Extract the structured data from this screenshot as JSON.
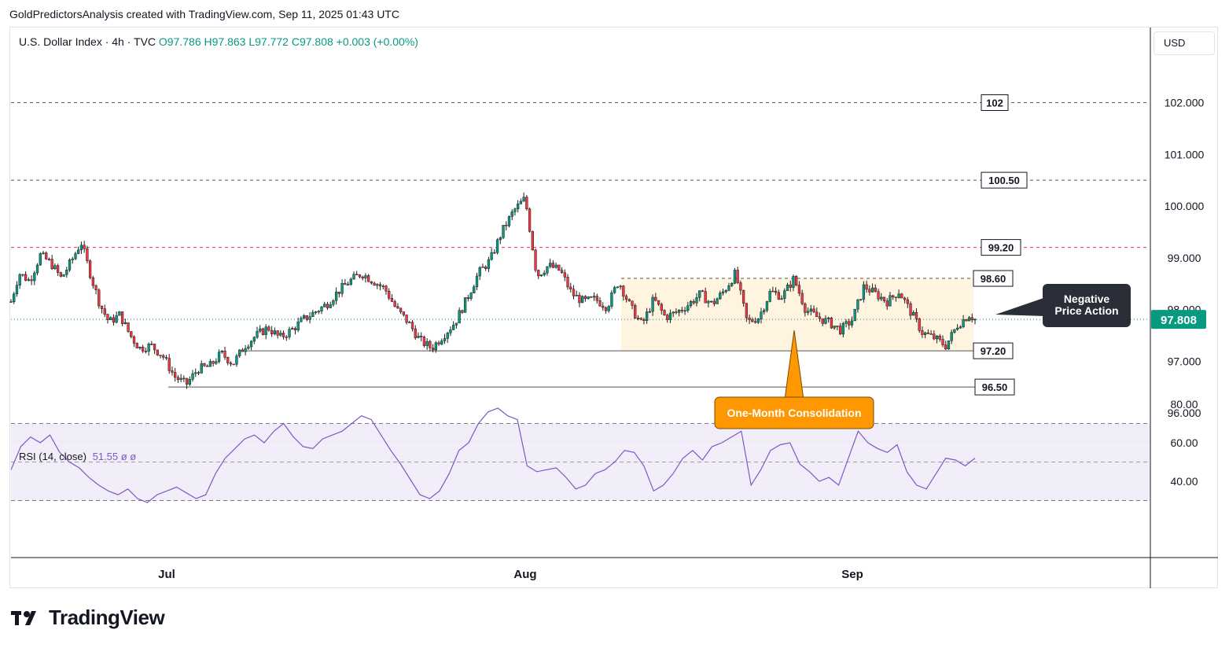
{
  "header": {
    "banner": "GoldPredictorsAnalysis created with TradingView.com, Sep 11, 2025 01:43 UTC",
    "symbol": "U.S. Dollar Index · 4h · TVC",
    "ohlc": "O97.786  H97.863  L97.772  C97.808  +0.003 (+0.00%)"
  },
  "currency_label": "USD",
  "rsi": {
    "label": "RSI (14, close)",
    "value_text": "51.55  ø  ø"
  },
  "footer": {
    "brand": "TradingView"
  },
  "colors": {
    "up": "#089981",
    "down": "#f23645",
    "rsi": "#7e57c2",
    "highlight": "#ff9800",
    "dark_label": "#2a2e39"
  },
  "chart_data": [
    {
      "type": "candlestick",
      "title": "U.S. Dollar Index",
      "timeframe": "4h",
      "x_tick_labels": [
        "Jul",
        "Aug",
        "Sep"
      ],
      "y_tick_labels": [
        "96.000",
        "97.000",
        "98.000",
        "99.000",
        "100.000",
        "101.000",
        "102.000"
      ],
      "ylim": [
        95.45,
        103.45
      ],
      "last_price": 97.808,
      "last_price_label": "97.808",
      "horizontal_levels": [
        {
          "value": 102.0,
          "label": "102",
          "style": "dashed",
          "color": "#555555"
        },
        {
          "value": 100.5,
          "label": "100.50",
          "style": "dashed",
          "color": "#555555"
        },
        {
          "value": 99.2,
          "label": "99.20",
          "style": "dashed",
          "color": "#f23645"
        },
        {
          "value": 98.6,
          "label": "98.60",
          "style": "dashed",
          "color": "#555555"
        },
        {
          "value": 97.2,
          "label": "97.20",
          "style": "solid",
          "color": "#555555"
        },
        {
          "value": 96.5,
          "label": "96.50",
          "style": "solid",
          "color": "#555555"
        }
      ],
      "consolidation_zone": {
        "top": 98.6,
        "bottom": 97.2,
        "label": "One-Month Consolidation"
      },
      "annotation": {
        "text_line1": "Negative",
        "text_line2": "Price Action"
      },
      "close_path": [
        {
          "x": 0.0,
          "y": 98.15
        },
        {
          "x": 0.7,
          "y": 98.7
        },
        {
          "x": 1.6,
          "y": 98.55
        },
        {
          "x": 2.5,
          "y": 99.05
        },
        {
          "x": 3.4,
          "y": 98.9
        },
        {
          "x": 4.3,
          "y": 98.6
        },
        {
          "x": 5.2,
          "y": 98.95
        },
        {
          "x": 6.0,
          "y": 99.3
        },
        {
          "x": 6.9,
          "y": 98.6
        },
        {
          "x": 7.6,
          "y": 98.1
        },
        {
          "x": 8.4,
          "y": 97.75
        },
        {
          "x": 9.3,
          "y": 97.9
        },
        {
          "x": 10.2,
          "y": 97.5
        },
        {
          "x": 11.0,
          "y": 97.25
        },
        {
          "x": 12.0,
          "y": 97.3
        },
        {
          "x": 13.0,
          "y": 97.1
        },
        {
          "x": 14.0,
          "y": 96.7
        },
        {
          "x": 15.0,
          "y": 96.55
        },
        {
          "x": 16.0,
          "y": 96.85
        },
        {
          "x": 17.0,
          "y": 96.9
        },
        {
          "x": 18.0,
          "y": 97.15
        },
        {
          "x": 19.0,
          "y": 96.95
        },
        {
          "x": 20.0,
          "y": 97.3
        },
        {
          "x": 21.0,
          "y": 97.5
        },
        {
          "x": 22.0,
          "y": 97.65
        },
        {
          "x": 23.0,
          "y": 97.45
        },
        {
          "x": 24.0,
          "y": 97.6
        },
        {
          "x": 25.0,
          "y": 97.8
        },
        {
          "x": 26.0,
          "y": 97.95
        },
        {
          "x": 27.0,
          "y": 98.1
        },
        {
          "x": 28.0,
          "y": 98.35
        },
        {
          "x": 29.0,
          "y": 98.55
        },
        {
          "x": 30.0,
          "y": 98.7
        },
        {
          "x": 31.0,
          "y": 98.55
        },
        {
          "x": 32.0,
          "y": 98.4
        },
        {
          "x": 33.0,
          "y": 98.0
        },
        {
          "x": 34.0,
          "y": 97.75
        },
        {
          "x": 35.0,
          "y": 97.4
        },
        {
          "x": 36.0,
          "y": 97.25
        },
        {
          "x": 37.0,
          "y": 97.5
        },
        {
          "x": 38.0,
          "y": 97.75
        },
        {
          "x": 39.0,
          "y": 98.2
        },
        {
          "x": 40.0,
          "y": 98.7
        },
        {
          "x": 41.0,
          "y": 98.95
        },
        {
          "x": 42.0,
          "y": 99.5
        },
        {
          "x": 43.0,
          "y": 99.9
        },
        {
          "x": 44.0,
          "y": 100.15
        },
        {
          "x": 45.0,
          "y": 98.65
        },
        {
          "x": 46.0,
          "y": 98.85
        },
        {
          "x": 47.0,
          "y": 98.75
        },
        {
          "x": 48.0,
          "y": 98.3
        },
        {
          "x": 49.0,
          "y": 98.15
        },
        {
          "x": 50.0,
          "y": 98.2
        },
        {
          "x": 51.0,
          "y": 98.05
        },
        {
          "x": 52.0,
          "y": 98.55
        },
        {
          "x": 53.0,
          "y": 98.05
        },
        {
          "x": 54.0,
          "y": 97.7
        },
        {
          "x": 55.0,
          "y": 98.2
        },
        {
          "x": 56.0,
          "y": 97.85
        },
        {
          "x": 57.0,
          "y": 97.95
        },
        {
          "x": 58.0,
          "y": 98.1
        },
        {
          "x": 59.0,
          "y": 98.3
        },
        {
          "x": 60.0,
          "y": 98.1
        },
        {
          "x": 61.0,
          "y": 98.35
        },
        {
          "x": 62.0,
          "y": 98.7
        },
        {
          "x": 63.0,
          "y": 97.75
        },
        {
          "x": 64.0,
          "y": 97.85
        },
        {
          "x": 65.0,
          "y": 98.35
        },
        {
          "x": 66.0,
          "y": 98.25
        },
        {
          "x": 67.0,
          "y": 98.6
        },
        {
          "x": 68.0,
          "y": 98.0
        },
        {
          "x": 69.0,
          "y": 97.85
        },
        {
          "x": 70.0,
          "y": 97.75
        },
        {
          "x": 71.0,
          "y": 97.6
        },
        {
          "x": 72.0,
          "y": 97.8
        },
        {
          "x": 73.0,
          "y": 98.45
        },
        {
          "x": 74.0,
          "y": 98.3
        },
        {
          "x": 75.0,
          "y": 98.15
        },
        {
          "x": 76.0,
          "y": 98.35
        },
        {
          "x": 77.0,
          "y": 97.95
        },
        {
          "x": 78.0,
          "y": 97.55
        },
        {
          "x": 79.0,
          "y": 97.45
        },
        {
          "x": 80.0,
          "y": 97.3
        },
        {
          "x": 81.0,
          "y": 97.7
        },
        {
          "x": 82.0,
          "y": 97.9
        },
        {
          "x": 82.5,
          "y": 97.808
        }
      ],
      "x_range": [
        0,
        100
      ]
    },
    {
      "type": "line",
      "title": "RSI (14, close)",
      "y_tick_labels": [
        "40.00",
        "60.00",
        "80.00"
      ],
      "ylim": [
        22,
        82
      ],
      "bands": {
        "upper": 70,
        "middle": 50,
        "lower": 30
      },
      "series": [
        {
          "name": "",
          "values": [
            46,
            58,
            63,
            60,
            64,
            55,
            50,
            47,
            42,
            38,
            35,
            33,
            36,
            31,
            29,
            33,
            35,
            37,
            34,
            31,
            33,
            44,
            52,
            57,
            62,
            64,
            60,
            66,
            70,
            63,
            58,
            57,
            62,
            64,
            66,
            70,
            74,
            72,
            64,
            56,
            49,
            41,
            33,
            31,
            35,
            44,
            56,
            60,
            70,
            76,
            78,
            74,
            72,
            48,
            45,
            46,
            47,
            42,
            36,
            38,
            44,
            46,
            50,
            56,
            55,
            48,
            35,
            38,
            44,
            52,
            56,
            51,
            58,
            60,
            63,
            66,
            38,
            46,
            56,
            59,
            60,
            49,
            45,
            40,
            42,
            38,
            52,
            66,
            60,
            57,
            55,
            59,
            45,
            38,
            36,
            44,
            52,
            51,
            48,
            52
          ]
        }
      ],
      "last_value": 51.55,
      "value_label": "51.55"
    }
  ]
}
